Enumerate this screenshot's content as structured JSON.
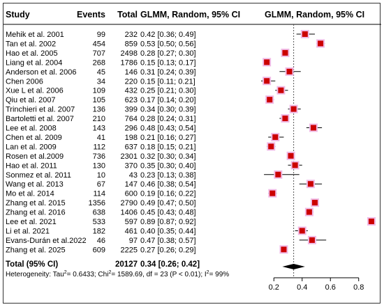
{
  "headers": {
    "study": "Study",
    "events": "Events",
    "total": "Total",
    "estimate": "GLMM, Random, 95% CI",
    "plot": "GLMM, Random, 95% CI"
  },
  "heterogeneity": {
    "prefix": "Heterogeneity: Tau",
    "tau2": "= 0.6433; Chi",
    "chi2": "= 1589.69, df = 23 (P < 0.01); I",
    "i2": "= 99%",
    "sup": "2"
  },
  "colors": {
    "marker": "#cc0000",
    "marker_halo": "#f0bbe6",
    "diamond": "#000000",
    "reference_line": "#555555"
  },
  "chart_data": {
    "type": "forest",
    "x_ticks": [
      0.2,
      0.4,
      0.6,
      0.8
    ],
    "x_tick_labels": [
      "0.2",
      "0.4",
      "0.6",
      "0.8"
    ],
    "xlim": [
      0.09,
      0.91
    ],
    "reference_value": 0.34,
    "studies": [
      {
        "study": "Mehik et al. 2001",
        "events": "99",
        "total": "232",
        "est": 0.42,
        "lo": 0.36,
        "hi": 0.49,
        "ci": "0.42 [0.36; 0.49]"
      },
      {
        "study": "Tan et al. 2002",
        "events": "454",
        "total": "859",
        "est": 0.53,
        "lo": 0.5,
        "hi": 0.56,
        "ci": "0.53 [0.50; 0.56]"
      },
      {
        "study": "Hao et al. 2005",
        "events": "707",
        "total": "2498",
        "est": 0.28,
        "lo": 0.27,
        "hi": 0.3,
        "ci": "0.28 [0.27; 0.30]"
      },
      {
        "study": "Liang et al. 2004",
        "events": "268",
        "total": "1786",
        "est": 0.15,
        "lo": 0.13,
        "hi": 0.17,
        "ci": "0.15 [0.13; 0.17]"
      },
      {
        "study": "Anderson et al. 2006",
        "events": "45",
        "total": "146",
        "est": 0.31,
        "lo": 0.24,
        "hi": 0.39,
        "ci": "0.31 [0.24; 0.39]"
      },
      {
        "study": "Chen 2006",
        "events": "34",
        "total": "220",
        "est": 0.15,
        "lo": 0.11,
        "hi": 0.21,
        "ci": "0.15 [0.11; 0.21]"
      },
      {
        "study": "Xue L et al. 2006",
        "events": "109",
        "total": "432",
        "est": 0.25,
        "lo": 0.21,
        "hi": 0.3,
        "ci": "0.25 [0.21; 0.30]"
      },
      {
        "study": "Qiu et al. 2007",
        "events": "105",
        "total": "623",
        "est": 0.17,
        "lo": 0.14,
        "hi": 0.2,
        "ci": "0.17 [0.14; 0.20]"
      },
      {
        "study": "Trinchieri et al. 2007",
        "events": "136",
        "total": "399",
        "est": 0.34,
        "lo": 0.3,
        "hi": 0.39,
        "ci": "0.34 [0.30; 0.39]"
      },
      {
        "study": "Bartoletti et al. 2007",
        "events": "210",
        "total": "764",
        "est": 0.28,
        "lo": 0.24,
        "hi": 0.31,
        "ci": "0.28 [0.24; 0.31]"
      },
      {
        "study": "Lee et al. 2008",
        "events": "143",
        "total": "296",
        "est": 0.48,
        "lo": 0.43,
        "hi": 0.54,
        "ci": "0.48 [0.43; 0.54]"
      },
      {
        "study": "Chen et al. 2009",
        "events": "41",
        "total": "198",
        "est": 0.21,
        "lo": 0.16,
        "hi": 0.27,
        "ci": "0.21 [0.16; 0.27]"
      },
      {
        "study": "Lan et al. 2009",
        "events": "112",
        "total": "637",
        "est": 0.18,
        "lo": 0.15,
        "hi": 0.21,
        "ci": "0.18 [0.15; 0.21]"
      },
      {
        "study": "Rosen et al.2009",
        "events": "736",
        "total": "2301",
        "est": 0.32,
        "lo": 0.3,
        "hi": 0.34,
        "ci": "0.32 [0.30; 0.34]"
      },
      {
        "study": "Hao et al. 2011",
        "events": "130",
        "total": "370",
        "est": 0.35,
        "lo": 0.3,
        "hi": 0.4,
        "ci": "0.35 [0.30; 0.40]"
      },
      {
        "study": "Sonmez et al. 2011",
        "events": "10",
        "total": "43",
        "est": 0.23,
        "lo": 0.13,
        "hi": 0.38,
        "ci": "0.23 [0.13; 0.38]"
      },
      {
        "study": "Wang et al. 2013",
        "events": "67",
        "total": "147",
        "est": 0.46,
        "lo": 0.38,
        "hi": 0.54,
        "ci": "0.46 [0.38; 0.54]"
      },
      {
        "study": "Mo et al. 2014",
        "events": "114",
        "total": "600",
        "est": 0.19,
        "lo": 0.16,
        "hi": 0.22,
        "ci": "0.19 [0.16; 0.22]"
      },
      {
        "study": "Zhang et al. 2015",
        "events": "1356",
        "total": "2790",
        "est": 0.49,
        "lo": 0.47,
        "hi": 0.5,
        "ci": "0.49 [0.47; 0.50]"
      },
      {
        "study": "Zhang et al. 2016",
        "events": "638",
        "total": "1406",
        "est": 0.45,
        "lo": 0.43,
        "hi": 0.48,
        "ci": "0.45 [0.43; 0.48]"
      },
      {
        "study": "Lee et al. 2021",
        "events": "533",
        "total": "597",
        "est": 0.89,
        "lo": 0.87,
        "hi": 0.92,
        "ci": "0.89 [0.87; 0.92]"
      },
      {
        "study": "Li et al. 2021",
        "events": "182",
        "total": "461",
        "est": 0.4,
        "lo": 0.35,
        "hi": 0.44,
        "ci": "0.40 [0.35; 0.44]"
      },
      {
        "study": "Evans-Durán et al.2022",
        "events": "46",
        "total": "97",
        "est": 0.47,
        "lo": 0.38,
        "hi": 0.57,
        "ci": "0.47 [0.38; 0.57]"
      },
      {
        "study": "Zhang et al. 2025",
        "events": "609",
        "total": "2225",
        "est": 0.27,
        "lo": 0.26,
        "hi": 0.29,
        "ci": "0.27 [0.26; 0.29]"
      }
    ],
    "pooled": {
      "label": "Total (95% CI)",
      "total": "20127",
      "est": 0.34,
      "lo": 0.26,
      "hi": 0.42,
      "ci": "0.34 [0.26; 0.42]"
    }
  }
}
